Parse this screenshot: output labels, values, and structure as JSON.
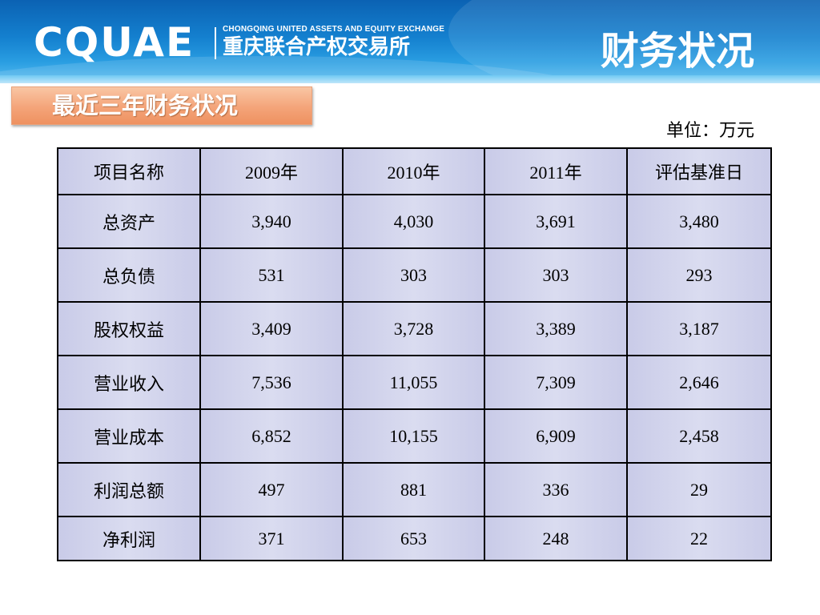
{
  "header": {
    "logo_mark": "CQUAE",
    "logo_en": "CHONGQING UNITED ASSETS AND EQUITY EXCHANGE",
    "logo_cn": "重庆联合产权交易所",
    "title": "财务状况"
  },
  "section": {
    "tag": "最近三年财务状况",
    "unit": "单位：万元"
  },
  "table": {
    "headers": [
      "项目名称",
      "2009年",
      "2010年",
      "2011年",
      "评估基准日"
    ],
    "rows": [
      [
        "总资产",
        "3,940",
        "4,030",
        "3,691",
        "3,480"
      ],
      [
        "总负债",
        "531",
        "303",
        "303",
        "293"
      ],
      [
        "股权权益",
        "3,409",
        "3,728",
        "3,389",
        "3,187"
      ],
      [
        "营业收入",
        "7,536",
        "11,055",
        "7,309",
        "2,646"
      ],
      [
        "营业成本",
        "6,852",
        "10,155",
        "6,909",
        "2,458"
      ],
      [
        "利润总额",
        "497",
        "881",
        "336",
        "29"
      ],
      [
        "净利润",
        "371",
        "653",
        "248",
        "22"
      ]
    ]
  },
  "colors": {
    "header_blue": "#1480cf",
    "tag_orange": "#f4a479",
    "cell_lavender": "#d3d5ee"
  }
}
